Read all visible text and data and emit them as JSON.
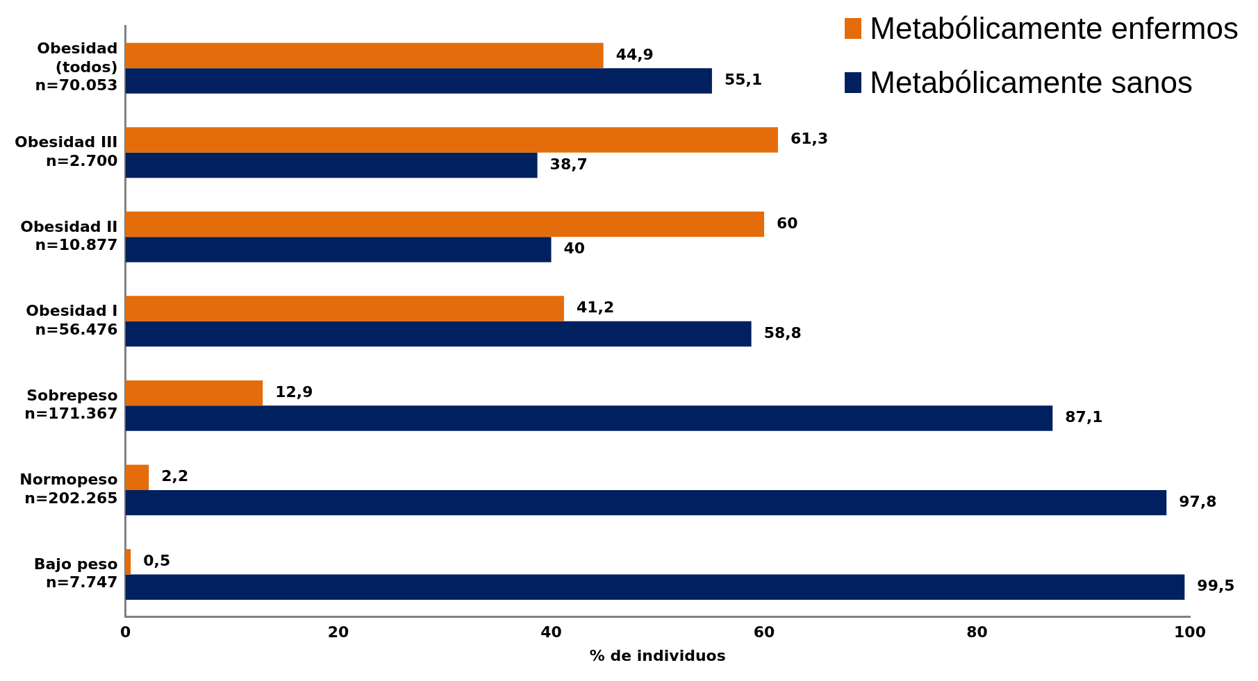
{
  "chart_data": {
    "type": "bar",
    "orientation": "horizontal",
    "categories": [
      "Obesidad\n(todos)\nn=70.053",
      "Obesidad III\nn=2.700",
      "Obesidad II\nn=10.877",
      "Obesidad I\nn=56.476",
      "Sobrepeso\nn=171.367",
      "Normopeso\nn=202.265",
      "Bajo peso\nn=7.747"
    ],
    "series": [
      {
        "name": "Metabólicamente enfermos",
        "color": "#e46c0a",
        "values": [
          44.9,
          61.3,
          60,
          41.2,
          12.9,
          2.2,
          0.5
        ],
        "value_labels": [
          "44,9",
          "61,3",
          "60",
          "41,2",
          "12,9",
          "2,2",
          "0,5"
        ]
      },
      {
        "name": "Metabólicamente sanos",
        "color": "#002060",
        "values": [
          55.1,
          38.7,
          40,
          58.8,
          87.1,
          97.8,
          99.5
        ],
        "value_labels": [
          "55,1",
          "38,7",
          "40",
          "58,8",
          "87,1",
          "97,8",
          "99,5"
        ]
      }
    ],
    "xlim": [
      0,
      100
    ],
    "xticks": [
      0,
      20,
      40,
      60,
      80,
      100
    ],
    "xlabel": "% de individuos",
    "legend": "top right",
    "grid": false
  }
}
